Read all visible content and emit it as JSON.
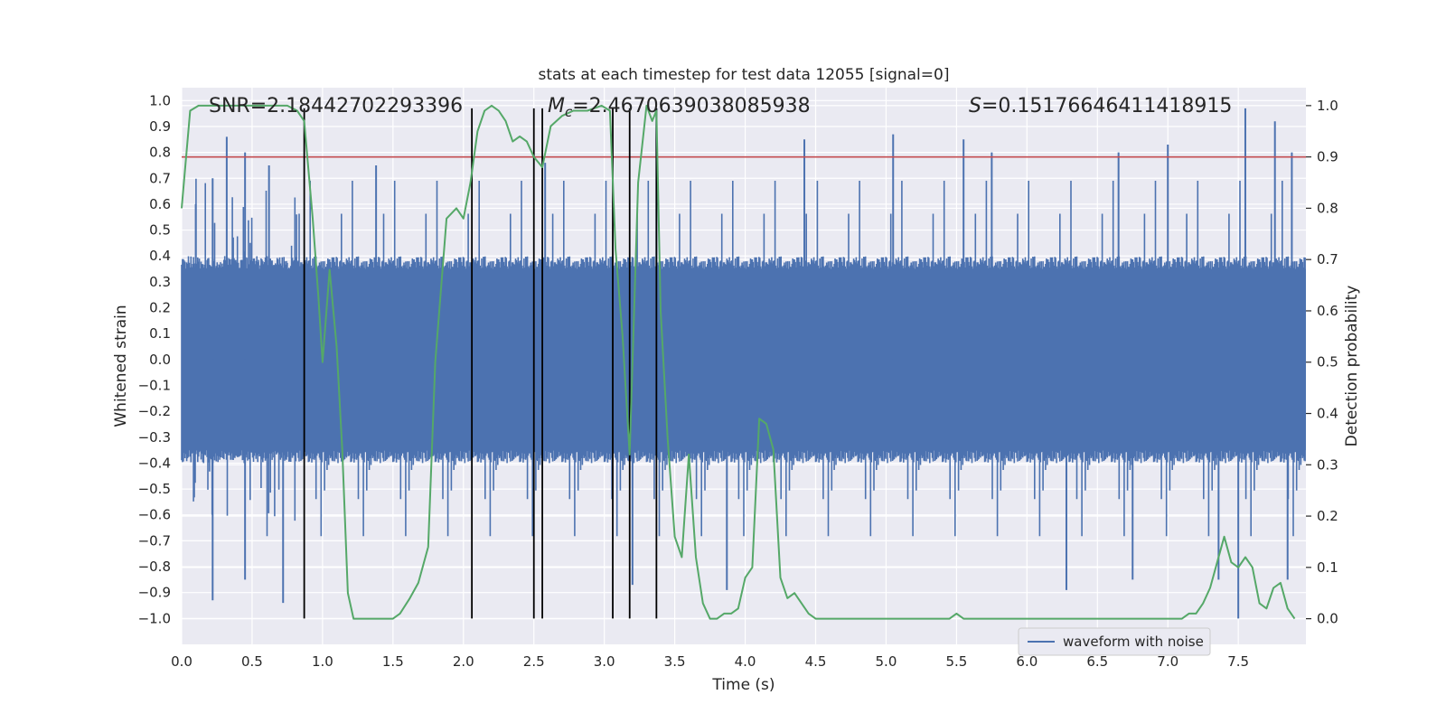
{
  "chart_data": {
    "type": "line",
    "title": "stats at each timestep for test data 12055 [signal=0]",
    "xlabel": "Time (s)",
    "ylabel": "Whitened strain",
    "y2label": "Detection probability",
    "xlim": [
      0.0,
      7.98
    ],
    "ylim": [
      -1.1,
      1.05
    ],
    "y2lim": [
      -0.05,
      1.035
    ],
    "x_ticks": [
      "0.0",
      "0.5",
      "1.0",
      "1.5",
      "2.0",
      "2.5",
      "3.0",
      "3.5",
      "4.0",
      "4.5",
      "5.0",
      "5.5",
      "6.0",
      "6.5",
      "7.0",
      "7.5"
    ],
    "y_ticks": [
      "1.0",
      "0.9",
      "0.8",
      "0.7",
      "0.6",
      "0.5",
      "0.4",
      "0.3",
      "0.2",
      "0.1",
      "0.0",
      "-0.1",
      "-0.2",
      "-0.3",
      "-0.4",
      "-0.5",
      "-0.6",
      "-0.7",
      "-0.8",
      "-0.9",
      "-1.0"
    ],
    "y2_ticks": [
      "1.0",
      "0.9",
      "0.8",
      "0.7",
      "0.6",
      "0.5",
      "0.4",
      "0.3",
      "0.2",
      "0.1",
      "0.0"
    ],
    "grid": true,
    "legend": {
      "placement": "lower-right",
      "entries": [
        "waveform with noise"
      ]
    },
    "annotations": {
      "snr": {
        "label": "SNR",
        "value": "2.18442702293396"
      },
      "mc": {
        "label": "M",
        "sub": "c",
        "value": "2.4670639038085938"
      },
      "s": {
        "label": "S",
        "value": "0.15176646411418915"
      }
    },
    "threshold": {
      "axis": "right",
      "value": 0.9
    },
    "event_lines": [
      0.87,
      2.06,
      2.5,
      2.56,
      3.06,
      3.18,
      3.37
    ],
    "event_line_range": [
      -1.0,
      0.97
    ],
    "strain_envelope": {
      "typical_pos": 0.35,
      "typical_neg": -0.35,
      "min": -1.0,
      "max": 0.97
    },
    "strain_spikes": [
      {
        "x": 0.1,
        "y": 0.6
      },
      {
        "x": 0.22,
        "y": 0.7
      },
      {
        "x": 0.32,
        "y": 0.86
      },
      {
        "x": 0.45,
        "y": 0.8
      },
      {
        "x": 0.62,
        "y": 0.75
      },
      {
        "x": 1.38,
        "y": 0.75
      },
      {
        "x": 2.58,
        "y": 0.76
      },
      {
        "x": 3.37,
        "y": 0.97
      },
      {
        "x": 4.42,
        "y": 0.85
      },
      {
        "x": 5.05,
        "y": 0.87
      },
      {
        "x": 5.55,
        "y": 0.85
      },
      {
        "x": 5.75,
        "y": 0.8
      },
      {
        "x": 6.65,
        "y": 0.8
      },
      {
        "x": 7.0,
        "y": 0.83
      },
      {
        "x": 7.55,
        "y": 0.97
      },
      {
        "x": 7.76,
        "y": 0.92
      },
      {
        "x": 7.88,
        "y": 0.8
      },
      {
        "x": 0.22,
        "y": -0.93
      },
      {
        "x": 0.45,
        "y": -0.85
      },
      {
        "x": 0.72,
        "y": -0.94
      },
      {
        "x": 3.2,
        "y": -0.87
      },
      {
        "x": 3.87,
        "y": -0.89
      },
      {
        "x": 6.28,
        "y": -0.89
      },
      {
        "x": 6.75,
        "y": -0.85
      },
      {
        "x": 7.5,
        "y": -1.0
      },
      {
        "x": 7.36,
        "y": -0.85
      },
      {
        "x": 7.85,
        "y": -0.85
      }
    ],
    "series": [
      {
        "name": "waveform with noise",
        "axis": "left",
        "color": "#4c72b0",
        "description": "dense noisy whitened strain signal"
      },
      {
        "axis": "right",
        "color": "#55a868",
        "x": [
          0.0,
          0.06,
          0.12,
          0.2,
          0.3,
          0.45,
          0.6,
          0.75,
          0.82,
          0.87,
          0.93,
          0.97,
          1.0,
          1.05,
          1.1,
          1.14,
          1.18,
          1.22,
          1.3,
          1.4,
          1.5,
          1.55,
          1.62,
          1.68,
          1.75,
          1.8,
          1.88,
          1.95,
          2.0,
          2.05,
          2.1,
          2.15,
          2.2,
          2.25,
          2.3,
          2.35,
          2.4,
          2.45,
          2.5,
          2.56,
          2.62,
          2.7,
          2.78,
          2.88,
          2.98,
          3.04,
          3.08,
          3.13,
          3.18,
          3.24,
          3.3,
          3.34,
          3.37,
          3.4,
          3.45,
          3.5,
          3.55,
          3.6,
          3.65,
          3.7,
          3.75,
          3.8,
          3.85,
          3.9,
          3.95,
          4.0,
          4.05,
          4.1,
          4.15,
          4.2,
          4.25,
          4.3,
          4.35,
          4.4,
          4.45,
          4.5,
          4.6,
          4.8,
          5.0,
          5.1,
          5.2,
          5.35,
          5.45,
          5.5,
          5.55,
          5.6,
          5.8,
          6.0,
          6.3,
          6.6,
          7.0,
          7.1,
          7.15,
          7.2,
          7.25,
          7.3,
          7.35,
          7.4,
          7.45,
          7.5,
          7.55,
          7.6,
          7.65,
          7.7,
          7.75,
          7.8,
          7.85,
          7.9
        ],
        "y": [
          0.8,
          0.99,
          1.0,
          1.0,
          1.0,
          1.0,
          1.0,
          1.0,
          0.99,
          0.97,
          0.78,
          0.63,
          0.5,
          0.68,
          0.53,
          0.33,
          0.05,
          0.0,
          0.0,
          0.0,
          0.0,
          0.01,
          0.04,
          0.07,
          0.14,
          0.5,
          0.78,
          0.8,
          0.78,
          0.85,
          0.95,
          0.99,
          1.0,
          0.99,
          0.97,
          0.93,
          0.94,
          0.93,
          0.9,
          0.88,
          0.96,
          0.98,
          0.99,
          0.99,
          1.0,
          0.99,
          0.72,
          0.55,
          0.32,
          0.85,
          1.0,
          0.97,
          0.99,
          0.6,
          0.35,
          0.16,
          0.12,
          0.32,
          0.12,
          0.03,
          0.0,
          0.0,
          0.01,
          0.01,
          0.02,
          0.08,
          0.1,
          0.39,
          0.38,
          0.33,
          0.08,
          0.04,
          0.05,
          0.03,
          0.01,
          0.0,
          0.0,
          0.0,
          0.0,
          0.0,
          0.0,
          0.0,
          0.0,
          0.01,
          0.0,
          0.0,
          0.0,
          0.0,
          0.0,
          0.0,
          0.0,
          0.0,
          0.01,
          0.01,
          0.03,
          0.06,
          0.11,
          0.16,
          0.11,
          0.1,
          0.12,
          0.1,
          0.03,
          0.02,
          0.06,
          0.07,
          0.02,
          0.0
        ]
      }
    ]
  }
}
